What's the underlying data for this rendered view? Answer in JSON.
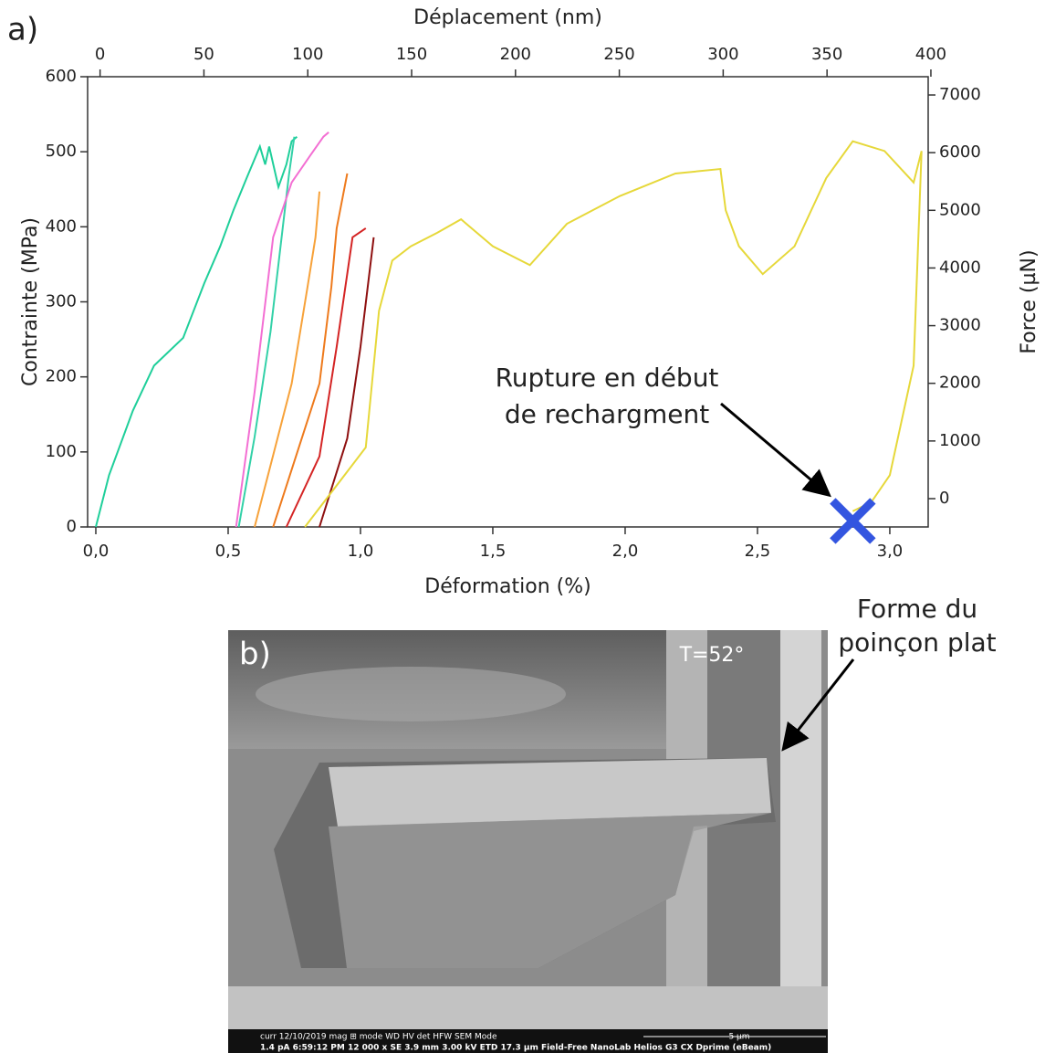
{
  "chart_data": {
    "type": "line",
    "x_label": "Déformation (%)",
    "x2_label": "Déplacement (nm)",
    "y_label": "Contrainte (MPa)",
    "y2_label": "Force (µN)",
    "xlim": [
      -0.031,
      3.145
    ],
    "xticks": [
      {
        "value": 0,
        "label": "0,0"
      },
      {
        "value": 0.5,
        "label": "0,5"
      },
      {
        "value": 1,
        "label": "1,0"
      },
      {
        "value": 1.5,
        "label": "1,5"
      },
      {
        "value": 2,
        "label": "2,0"
      },
      {
        "value": 2.5,
        "label": "2,5"
      },
      {
        "value": 3,
        "label": "3,0"
      }
    ],
    "x2lim": [
      -6,
      398.7
    ],
    "x2ticks": [
      0,
      50,
      100,
      150,
      200,
      250,
      300,
      350,
      400
    ],
    "ylim": [
      0,
      600
    ],
    "yticks": [
      0,
      100,
      200,
      300,
      400,
      500,
      600
    ],
    "y2lim": [
      -491,
      7317
    ],
    "y2ticks": [
      0,
      1000,
      2000,
      3000,
      4000,
      5000,
      6000,
      7000
    ],
    "series": [
      {
        "color": "#1fcf9a",
        "x": [
          0,
          0.05,
          0.14,
          0.22,
          0.33,
          0.41,
          0.47,
          0.52,
          0.57,
          0.62,
          0.64,
          0.655,
          0.69,
          0.72,
          0.74,
          0.76
        ],
        "values": [
          0,
          69,
          155,
          215,
          252,
          325,
          374,
          422,
          465,
          507,
          483,
          507,
          453,
          483,
          514,
          520
        ]
      },
      {
        "color": "#33d1a8",
        "x": [
          0.54,
          0.6,
          0.66,
          0.7,
          0.73,
          0.75
        ],
        "values": [
          0,
          120,
          260,
          380,
          470,
          520
        ]
      },
      {
        "color": "#f36fd3",
        "x": [
          0.53,
          0.6,
          0.67,
          0.74,
          0.81,
          0.86,
          0.88
        ],
        "values": [
          0,
          180,
          386,
          459,
          495,
          520,
          526
        ]
      },
      {
        "color": "#f7a23a",
        "x": [
          0.6,
          0.74,
          0.8,
          0.83,
          0.845
        ],
        "values": [
          0,
          191,
          320,
          386,
          447
        ]
      },
      {
        "color": "#ee7a1c",
        "x": [
          0.67,
          0.845,
          0.89,
          0.91,
          0.95
        ],
        "values": [
          0,
          191,
          320,
          398,
          471
        ]
      },
      {
        "color": "#d42424",
        "x": [
          0.72,
          0.845,
          0.91,
          0.97,
          1.02
        ],
        "values": [
          0,
          94,
          240,
          386,
          398
        ]
      },
      {
        "color": "#8e0f0f",
        "x": [
          0.845,
          0.95,
          1.0,
          1.05
        ],
        "values": [
          0,
          118,
          240,
          386
        ]
      },
      {
        "color": "#e6d83a",
        "x": [
          0.79,
          1.02,
          1.07,
          1.12,
          1.19,
          1.29,
          1.38,
          1.5,
          1.64,
          1.78,
          1.98,
          2.19,
          2.36,
          2.38,
          2.43,
          2.52,
          2.64,
          2.76,
          2.86,
          2.98,
          3.09,
          3.12,
          3.09,
          3.0,
          2.93,
          2.86
        ],
        "values": [
          0,
          106,
          288,
          355,
          374,
          392,
          410,
          374,
          349,
          404,
          441,
          471,
          477,
          422,
          374,
          337,
          374,
          465,
          514,
          501,
          459,
          501,
          215,
          69,
          33,
          21
        ]
      }
    ],
    "annotations": [
      {
        "text": [
          "Rupture en début",
          "de rechargment"
        ],
        "x": 2.86,
        "y": 8,
        "color": "#3355e0"
      }
    ]
  },
  "panel_labels": [
    "a)",
    "b)"
  ],
  "image": {
    "tilt": "T=52°",
    "callout": [
      "Forme du",
      "poinçon plat"
    ],
    "databar": [
      "curr   12/10/2019  mag   ⊞ mode  WD      HV      det  HFW       SEM Mode",
      "1.4 pA  6:59:12 PM  12 000 x  SE     3.9 mm  3.00 kV  ETD  17.3 µm  Field-Free   NanoLab Helios G3 CX Dprime (eBeam)"
    ],
    "scalebar": "5 µm"
  }
}
